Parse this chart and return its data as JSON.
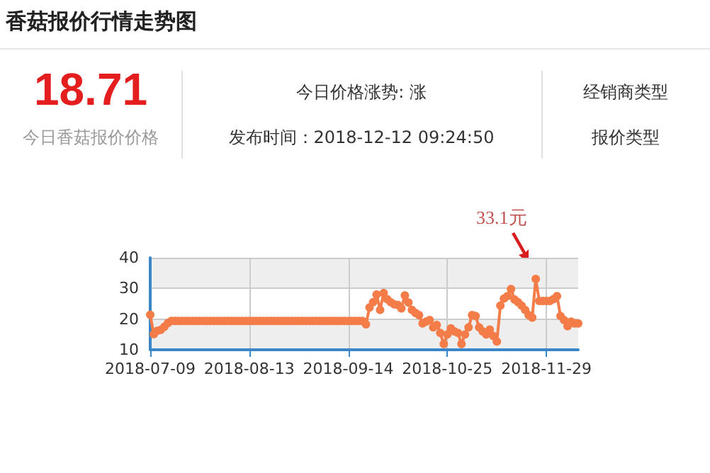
{
  "chart_data": {
    "type": "line",
    "title": "香菇报价行情走势图",
    "annotations": [
      "18.71",
      "今日香菇报价价格",
      "今日价格涨势: 涨",
      "发布时间：2018-12-12 09:24:50",
      "经销商类型",
      "报价类型",
      "33.1元"
    ],
    "categories": [
      "2018-07-09",
      null,
      null,
      null,
      null,
      null,
      null,
      null,
      null,
      null,
      null,
      null,
      null,
      null,
      null,
      null,
      null,
      null,
      null,
      null,
      null,
      null,
      null,
      null,
      null,
      null,
      null,
      null,
      "2018-08-13",
      null,
      null,
      null,
      null,
      null,
      null,
      null,
      null,
      null,
      null,
      null,
      null,
      null,
      null,
      null,
      null,
      null,
      null,
      null,
      null,
      null,
      null,
      null,
      null,
      null,
      null,
      null,
      "2018-09-14",
      null,
      null,
      null,
      null,
      null,
      null,
      null,
      null,
      null,
      null,
      null,
      null,
      null,
      null,
      null,
      null,
      null,
      null,
      null,
      null,
      null,
      null,
      null,
      null,
      null,
      null,
      null,
      "2018-10-25",
      null,
      null,
      null,
      null,
      null,
      null,
      null,
      null,
      null,
      null,
      null,
      null,
      null,
      null,
      null,
      null,
      null,
      null,
      null,
      null,
      null,
      null,
      null,
      null,
      null,
      null,
      null,
      "2018-11-29",
      null,
      null,
      null,
      null,
      null,
      null,
      null,
      null,
      null
    ],
    "series": [
      {
        "color": "#f47c48",
        "values": [
          21.4,
          15.1,
          16.2,
          16.5,
          17.5,
          18.7,
          19.4,
          19.4,
          19.4,
          19.4,
          19.4,
          19.4,
          19.4,
          19.4,
          19.4,
          19.4,
          19.4,
          19.4,
          19.4,
          19.4,
          19.4,
          19.4,
          19.4,
          19.4,
          19.4,
          19.4,
          19.4,
          19.4,
          19.4,
          19.4,
          19.4,
          19.4,
          19.4,
          19.4,
          19.4,
          19.4,
          19.4,
          19.4,
          19.4,
          19.4,
          19.4,
          19.4,
          19.4,
          19.4,
          19.4,
          19.4,
          19.4,
          19.4,
          19.4,
          19.4,
          19.4,
          19.4,
          19.4,
          19.4,
          19.4,
          19.4,
          19.4,
          19.4,
          19.4,
          19.4,
          19.4,
          18.3,
          23.8,
          25.5,
          28,
          23,
          28.5,
          26.5,
          25.5,
          24.8,
          24.6,
          23.5,
          27.7,
          25.4,
          23,
          22,
          21.3,
          18.6,
          19.2,
          19.7,
          17.3,
          18.1,
          15.5,
          11.9,
          15,
          17,
          16,
          15.5,
          11.9,
          15,
          17.3,
          21.3,
          21,
          17.3,
          16,
          15,
          16.6,
          14.5,
          12.7,
          24.4,
          26.7,
          27.5,
          29.8,
          26.4,
          25.5,
          24.4,
          23,
          21.3,
          20.5,
          33.1,
          25.9,
          25.9,
          25.9,
          25.9,
          26.5,
          27.5,
          21,
          19.7,
          17.7,
          19.2,
          18.6,
          18.6
        ]
      }
    ],
    "ylim": [
      10,
      40
    ],
    "yticks": [
      10,
      20,
      30,
      40
    ],
    "grid": true,
    "marker": "circle",
    "line_style": "solid"
  }
}
